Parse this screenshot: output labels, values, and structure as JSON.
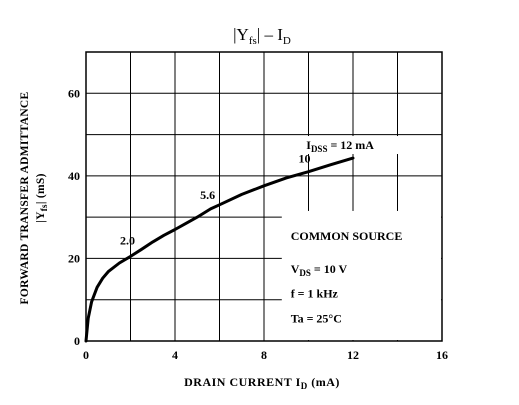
{
  "chart_data": {
    "type": "line",
    "title": {
      "main": "|Y",
      "sub": "fs",
      "rest": "|  –  I",
      "sub2": "D"
    },
    "xlabel": {
      "main": "DRAIN CURRENT  I",
      "sub": "D",
      "unit": "  (mA)"
    },
    "ylabel": {
      "line1": "FORWARD TRANSFER ADMITTANCE",
      "line2_main": "|Y",
      "line2_sub": "fs",
      "line2_rest": "|  (mS)"
    },
    "xlim": [
      0,
      16
    ],
    "ylim": [
      0,
      70
    ],
    "x_ticks": [
      "0",
      "4",
      "8",
      "12",
      "16"
    ],
    "y_ticks": [
      "0",
      "20",
      "40",
      "60"
    ],
    "grid": true,
    "series": [
      {
        "name": "",
        "x": [
          0,
          0.1,
          0.25,
          0.5,
          0.75,
          1,
          1.5,
          2,
          2.5,
          3,
          3.5,
          4,
          4.5,
          5,
          5.6,
          6,
          7,
          8,
          9,
          10,
          11,
          12
        ],
        "y": [
          0,
          5.5,
          9.5,
          13,
          15.2,
          16.8,
          18.9,
          20.5,
          22.2,
          24,
          25.6,
          27,
          28.5,
          30,
          32,
          33,
          35.5,
          37.6,
          39.5,
          41,
          42.7,
          44.3
        ]
      }
    ],
    "curve_labels": [
      {
        "text": "2.0",
        "x": 2.0,
        "y": 20.5
      },
      {
        "text": "5.6",
        "x": 5.6,
        "y": 32
      },
      {
        "text": "10",
        "x": 10,
        "y": 41
      }
    ],
    "idss_label": {
      "main": "I",
      "sub": "DSS",
      "rest": " = 12 mA"
    },
    "conditions": {
      "heading": "COMMON SOURCE",
      "vds_main": "V",
      "vds_sub": "DS",
      "vds_rest": " = 10 V",
      "freq": "f = 1 kHz",
      "temp": "Ta = 25°C"
    }
  }
}
